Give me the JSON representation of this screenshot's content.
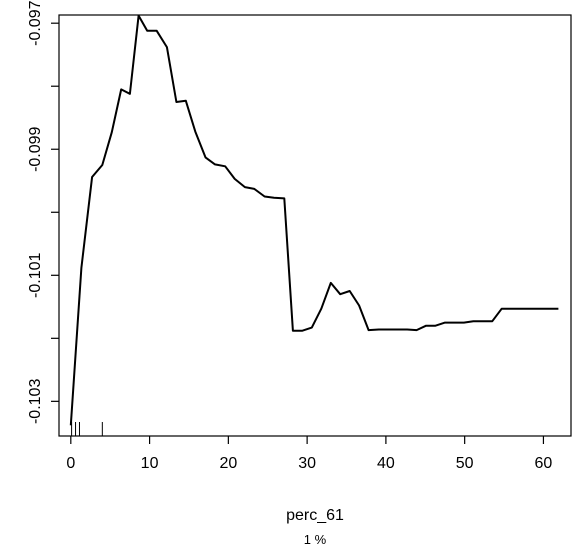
{
  "chart_data": {
    "type": "line",
    "title": "",
    "xlabel": "perc_61",
    "ylabel": "",
    "sub_label": "1 %",
    "xlim": [
      -1.5,
      63.5
    ],
    "ylim": [
      -0.10355,
      -0.09687
    ],
    "grid": false,
    "x_ticks": [
      0,
      10,
      20,
      30,
      40,
      50,
      60
    ],
    "y_ticks": [
      -0.103,
      -0.102,
      -0.101,
      -0.1,
      -0.099,
      -0.098,
      -0.097
    ],
    "y_tick_labels": [
      "-0.103",
      "",
      "-0.101",
      "",
      "-0.099",
      "",
      "-0.097"
    ],
    "rug_x": [
      0.1,
      0.6,
      1.1,
      4.0
    ],
    "series": [
      {
        "line_color": "#000000",
        "x": [
          0.0,
          1.35,
          2.7,
          4.0,
          5.2,
          6.4,
          7.5,
          8.6,
          9.7,
          10.9,
          12.2,
          13.4,
          14.6,
          15.8,
          17.1,
          18.3,
          19.6,
          20.8,
          22.1,
          23.3,
          24.6,
          25.8,
          27.1,
          28.2,
          29.4,
          30.6,
          31.8,
          33.0,
          34.2,
          35.4,
          36.6,
          37.8,
          39.1,
          40.3,
          41.5,
          42.7,
          43.9,
          45.1,
          46.3,
          47.5,
          48.7,
          49.9,
          51.1,
          52.3,
          53.5,
          54.7,
          55.9,
          57.1,
          58.3,
          59.5,
          60.7,
          61.9
        ],
        "y": [
          -0.10338,
          -0.10088,
          -0.09944,
          -0.09925,
          -0.09873,
          -0.09805,
          -0.09812,
          -0.09688,
          -0.09712,
          -0.09712,
          -0.09738,
          -0.09825,
          -0.09823,
          -0.09872,
          -0.09913,
          -0.09924,
          -0.09927,
          -0.09947,
          -0.0996,
          -0.09963,
          -0.09975,
          -0.09977,
          -0.09978,
          -0.10188,
          -0.10188,
          -0.10183,
          -0.10153,
          -0.10112,
          -0.1013,
          -0.10125,
          -0.10148,
          -0.10187,
          -0.10186,
          -0.10186,
          -0.10186,
          -0.10186,
          -0.10187,
          -0.1018,
          -0.1018,
          -0.10175,
          -0.10175,
          -0.10175,
          -0.10173,
          -0.10173,
          -0.10173,
          -0.10153,
          -0.10153,
          -0.10153,
          -0.10153,
          -0.10153,
          -0.10153,
          -0.10153
        ]
      }
    ]
  }
}
